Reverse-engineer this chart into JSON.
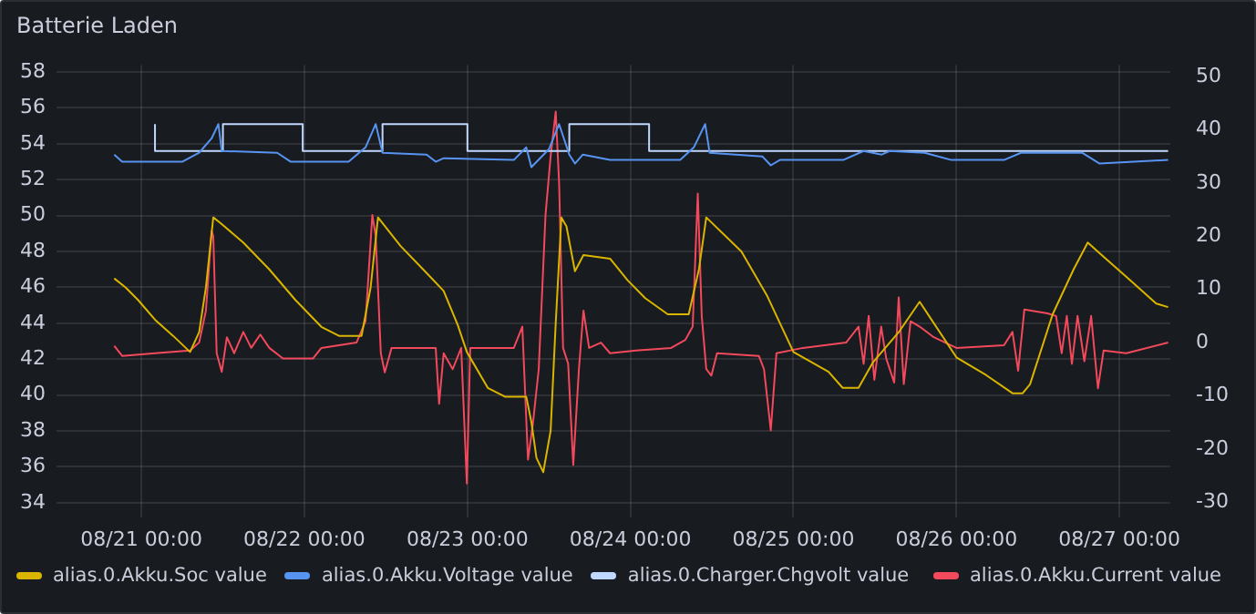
{
  "chart_data": {
    "type": "line",
    "title": "Batterie Laden",
    "xlim": [
      "--08-20T11:30",
      "--08-27T07:30"
    ],
    "xticks": [
      {
        "value": "--08-21T00:00",
        "label": "08/21 00:00"
      },
      {
        "value": "--08-22T00:00",
        "label": "08/22 00:00"
      },
      {
        "value": "--08-23T00:00",
        "label": "08/23 00:00"
      },
      {
        "value": "--08-24T00:00",
        "label": "08/24 00:00"
      },
      {
        "value": "--08-25T00:00",
        "label": "08/25 00:00"
      },
      {
        "value": "--08-26T00:00",
        "label": "08/26 00:00"
      },
      {
        "value": "--08-27T00:00",
        "label": "08/27 00:00"
      }
    ],
    "ylim": [
      33.2,
      58.4
    ],
    "yticks": [
      34,
      36,
      38,
      40,
      42,
      44,
      46,
      48,
      50,
      52,
      54,
      56,
      58
    ],
    "y2lim": [
      -32.8,
      52.2
    ],
    "y2ticks": [
      -30,
      -20,
      -10,
      0,
      10,
      20,
      30,
      40,
      50
    ],
    "grid": true,
    "legend": "bottom",
    "series": [
      {
        "name": "alias.0.Akku.Soc value",
        "color": "#d9b500",
        "axis": "y",
        "x": [
          "--08-20T20:00",
          "--08-20T21:40",
          "--08-20T23:30",
          "--08-21T02:00",
          "--08-21T04:40",
          "--08-21T07:10",
          "--08-21T08:30",
          "--08-21T09:30",
          "--08-21T10:35",
          "--08-21T11:35",
          "--08-21T15:00",
          "--08-21T18:50",
          "--08-21T22:40",
          "--08-22T02:30",
          "--08-22T05:05",
          "--08-22T08:25",
          "--08-22T09:45",
          "--08-22T10:50",
          "--08-22T14:10",
          "--08-22T18:00",
          "--08-22T20:30",
          "--08-22T22:35",
          "--08-22T23:55",
          "--08-23T03:00",
          "--08-23T05:35",
          "--08-23T08:40",
          "--08-23T09:25",
          "--08-23T10:10",
          "--08-23T11:10",
          "--08-23T12:15",
          "--08-23T13:00",
          "--08-23T13:50",
          "--08-23T14:35",
          "--08-23T15:50",
          "--08-23T17:05",
          "--08-23T21:00",
          "--08-23T23:35",
          "--08-24T02:10",
          "--08-24T05:30",
          "--08-24T08:35",
          "--08-24T10:05",
          "--08-24T11:10",
          "--08-24T16:20",
          "--08-24T20:10",
          "--08-25T00:00",
          "--08-25T05:10",
          "--08-25T07:15",
          "--08-25T09:35",
          "--08-25T11:40",
          "--08-25T15:30",
          "--08-25T18:35",
          "--08-26T00:00",
          "--08-26T04:25",
          "--08-26T08:15",
          "--08-26T09:45",
          "--08-26T10:50",
          "--08-26T14:10",
          "--08-26T17:15",
          "--08-26T19:20",
          "--08-26T21:05",
          "--08-27T01:00",
          "--08-27T05:25",
          "--08-27T07:10"
        ],
        "values": [
          46.5,
          46.0,
          45.3,
          44.2,
          43.3,
          42.4,
          43.5,
          46,
          49.9,
          49.6,
          48.5,
          47,
          45.3,
          43.8,
          43.3,
          43.3,
          46,
          49.9,
          48.3,
          46.8,
          45.8,
          43.9,
          42.4,
          40.4,
          39.9,
          39.9,
          38.5,
          36.5,
          35.7,
          38,
          44,
          49.9,
          49.4,
          46.9,
          47.8,
          47.6,
          46.4,
          45.4,
          44.5,
          44.5,
          47,
          49.9,
          48,
          45.5,
          42.4,
          41.3,
          40.4,
          40.4,
          41.8,
          43.5,
          45.2,
          42.1,
          41.1,
          40.1,
          40.1,
          40.6,
          44.5,
          47,
          48.5,
          47.9,
          46.6,
          45.1,
          44.9
        ]
      },
      {
        "name": "alias.0.Akku.Voltage value",
        "color": "#5794f2",
        "axis": "y",
        "x": [
          "--08-20T20:00",
          "--08-20T21:10",
          "--08-21T06:00",
          "--08-21T08:30",
          "--08-21T10:20",
          "--08-21T11:20",
          "--08-21T11:50",
          "--08-21T20:00",
          "--08-21T22:00",
          "--08-22T06:30",
          "--08-22T09:00",
          "--08-22T10:30",
          "--08-22T11:30",
          "--08-22T18:00",
          "--08-22T19:20",
          "--08-22T20:30",
          "--08-23T06:50",
          "--08-23T08:40",
          "--08-23T09:25",
          "--08-23T12:00",
          "--08-23T13:30",
          "--08-23T15:00",
          "--08-23T15:50",
          "--08-23T17:00",
          "--08-23T21:00",
          "--08-24T07:20",
          "--08-24T09:20",
          "--08-24T11:00",
          "--08-24T11:40",
          "--08-24T19:25",
          "--08-24T20:40",
          "--08-24T22:00",
          "--08-25T07:20",
          "--08-25T10:20",
          "--08-25T13:00",
          "--08-25T14:10",
          "--08-25T19:20",
          "--08-25T23:15",
          "--08-26T07:00",
          "--08-26T09:30",
          "--08-26T18:30",
          "--08-26T21:05",
          "--08-27T07:10"
        ],
        "values": [
          53.4,
          53.0,
          53.0,
          53.5,
          54.3,
          55.1,
          53.6,
          53.5,
          53.0,
          53.0,
          53.8,
          55.1,
          53.5,
          53.4,
          53.0,
          53.2,
          53.1,
          53.8,
          52.7,
          53.7,
          55.1,
          53.4,
          52.9,
          53.4,
          53.1,
          53.1,
          53.8,
          55.1,
          53.5,
          53.3,
          52.8,
          53.1,
          53.1,
          53.6,
          53.4,
          53.6,
          53.5,
          53.1,
          53.1,
          53.5,
          53.5,
          52.9,
          53.1
        ]
      },
      {
        "name": "alias.0.Charger.Chgvolt value",
        "color": "#c0d8ff",
        "axis": "y",
        "type": "step",
        "x": [
          "--08-21T02:00",
          "--08-21T12:00",
          "--08-21T23:45",
          "--08-22T11:30",
          "--08-23T00:00",
          "--08-23T15:00",
          "--08-24T02:45",
          "--08-24T11:45",
          "--08-27T07:10"
        ],
        "values": [
          55.1,
          53.6,
          55.1,
          53.6,
          55.1,
          53.6,
          55.1,
          53.6,
          53.6
        ]
      },
      {
        "name": "alias.0.Akku.Current value",
        "color": "#f2495c",
        "axis": "y2",
        "x": [
          "--08-20T20:00",
          "--08-20T21:10",
          "--08-21T02:00",
          "--08-21T07:10",
          "--08-21T08:30",
          "--08-21T09:30",
          "--08-21T10:20",
          "--08-21T10:35",
          "--08-21T11:05",
          "--08-21T11:50",
          "--08-21T12:35",
          "--08-21T13:40",
          "--08-21T15:00",
          "--08-21T16:10",
          "--08-21T17:30",
          "--08-21T18:50",
          "--08-21T20:50",
          "--08-22T01:15",
          "--08-22T02:30",
          "--08-22T07:40",
          "--08-22T09:00",
          "--08-22T10:00",
          "--08-22T10:30",
          "--08-22T11:15",
          "--08-22T11:50",
          "--08-22T12:50",
          "--08-22T19:20",
          "--08-22T19:50",
          "--08-22T20:30",
          "--08-22T21:50",
          "--08-22T23:05",
          "--08-22T23:55",
          "--08-23T00:25",
          "--08-23T06:50",
          "--08-23T08:05",
          "--08-23T08:55",
          "--08-23T09:40",
          "--08-23T10:30",
          "--08-23T11:30",
          "--08-23T12:15",
          "--08-23T13:00",
          "--08-23T13:30",
          "--08-23T14:05",
          "--08-23T14:50",
          "--08-23T15:35",
          "--08-23T16:25",
          "--08-23T17:05",
          "--08-23T17:55",
          "--08-23T19:40",
          "--08-23T21:00",
          "--08-24T00:50",
          "--08-24T06:00",
          "--08-24T08:05",
          "--08-24T09:10",
          "--08-24T09:55",
          "--08-24T10:30",
          "--08-24T11:10",
          "--08-24T11:55",
          "--08-24T12:45",
          "--08-24T18:55",
          "--08-24T19:40",
          "--08-24T20:40",
          "--08-24T21:30",
          "--08-25T01:25",
          "--08-25T07:45",
          "--08-25T09:35",
          "--08-25T10:20",
          "--08-25T11:05",
          "--08-25T11:55",
          "--08-25T12:55",
          "--08-25T13:40",
          "--08-25T14:50",
          "--08-25T15:30",
          "--08-25T16:15",
          "--08-25T17:15",
          "--08-25T18:35",
          "--08-25T20:40",
          "--08-26T00:00",
          "--08-26T07:00",
          "--08-26T08:15",
          "--08-26T09:05",
          "--08-26T10:00",
          "--08-26T13:25",
          "--08-26T14:40",
          "--08-26T15:30",
          "--08-26T16:15",
          "--08-26T17:00",
          "--08-26T17:50",
          "--08-26T18:50",
          "--08-26T19:50",
          "--08-26T20:50",
          "--08-26T21:40",
          "--08-27T01:00",
          "--08-27T07:10"
        ],
        "values": [
          -0.6,
          -2.5,
          -2,
          -1.5,
          0,
          6,
          21,
          20,
          -2,
          -5.5,
          1,
          -2,
          2,
          -1,
          1.5,
          -1,
          -3,
          -3,
          -1,
          0,
          4,
          24,
          20,
          -2,
          -5.6,
          -1,
          -1,
          -11.5,
          -2,
          -5,
          -1,
          -26.5,
          -1,
          -1,
          3,
          -22,
          -15,
          -5,
          24,
          35,
          43.4,
          30,
          -1,
          -4,
          -23,
          -5,
          6,
          -1,
          0,
          -2,
          -1.5,
          -1,
          0.5,
          3,
          28,
          5,
          -5,
          -6.2,
          -2,
          -2.5,
          -5,
          -16.5,
          -2,
          -1,
          0,
          3,
          -4,
          5,
          -7,
          3,
          -3,
          -7.5,
          8.5,
          -7.8,
          4,
          3,
          1,
          -1,
          -0.5,
          2,
          -5.3,
          6.2,
          5.5,
          5,
          -2,
          5,
          -4,
          5,
          -3.5,
          5,
          -8.6,
          -1.5,
          -2,
          0
        ]
      }
    ]
  }
}
